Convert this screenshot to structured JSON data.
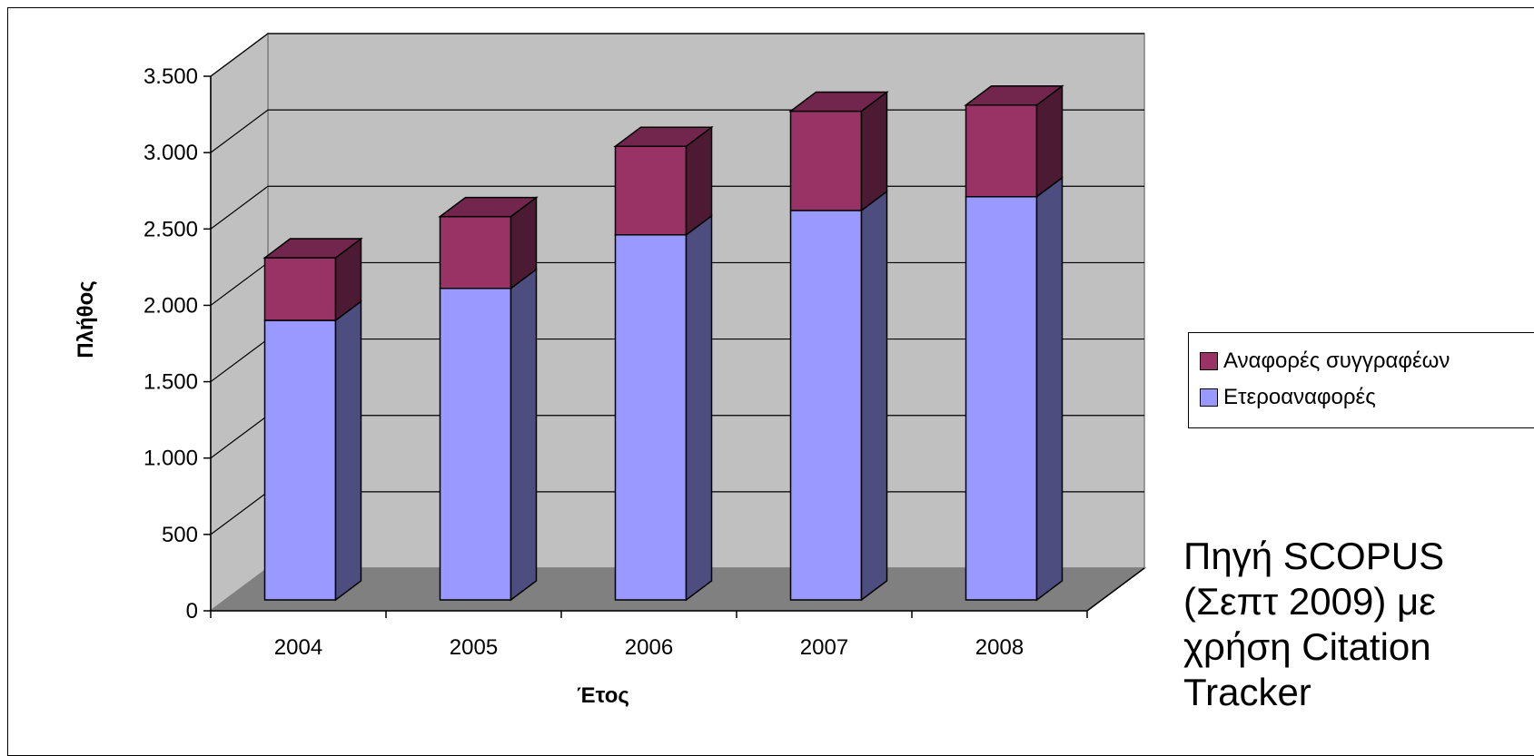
{
  "chart_data": {
    "type": "bar",
    "stacked": true,
    "three_d": true,
    "categories": [
      "2004",
      "2005",
      "2006",
      "2007",
      "2008"
    ],
    "series": [
      {
        "name": "Ετεροαναφορές",
        "values": [
          1830,
          2040,
          2390,
          2550,
          2640
        ],
        "color": "#9999FF"
      },
      {
        "name": "Αναφορές συγγραφέων",
        "values": [
          410,
          470,
          580,
          650,
          600
        ],
        "color": "#993366"
      }
    ],
    "xlabel": "Έτος",
    "ylabel": "Πλήθος",
    "ylim": [
      0,
      3500
    ],
    "yticks": [
      0,
      500,
      1000,
      1500,
      2000,
      2500,
      3000,
      3500
    ],
    "ytick_labels": [
      "0",
      "500",
      "1.000",
      "1.500",
      "2.000",
      "2.500",
      "3.000",
      "3.500"
    ],
    "grid": true,
    "legend_position": "right",
    "wall_color": "#C0C0C0",
    "floor_color": "#808080"
  },
  "note": {
    "lines": [
      "Πηγή SCOPUS",
      "(Σεπτ 2009) με",
      "χρήση Citation",
      "Tracker"
    ]
  }
}
